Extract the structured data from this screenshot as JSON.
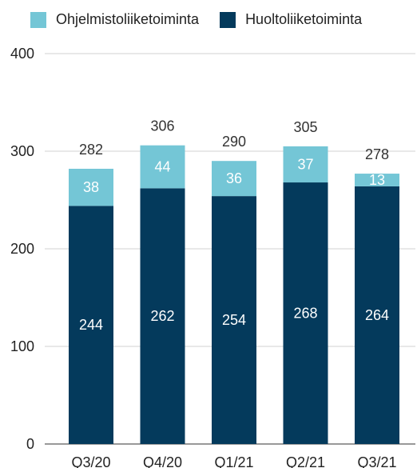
{
  "legend": [
    {
      "name": "Ohjelmistoliiketoiminta",
      "color": "#74c6d6"
    },
    {
      "name": "Huoltoliiketoiminta",
      "color": "#043a5c"
    }
  ],
  "chart_data": {
    "type": "bar",
    "stacked": true,
    "categories": [
      "Q3/20",
      "Q4/20",
      "Q1/21",
      "Q2/21",
      "Q3/21"
    ],
    "series": [
      {
        "name": "Huoltoliiketoiminta",
        "values": [
          244,
          262,
          254,
          268,
          264
        ],
        "color": "#043a5c"
      },
      {
        "name": "Ohjelmistoliiketoiminta",
        "values": [
          38,
          44,
          36,
          37,
          13
        ],
        "color": "#74c6d6"
      }
    ],
    "totals": [
      282,
      306,
      290,
      305,
      278
    ],
    "ylim": [
      0,
      400
    ],
    "yticks": [
      0,
      100,
      200,
      300,
      400
    ],
    "grid": true,
    "legend_position": "top"
  }
}
